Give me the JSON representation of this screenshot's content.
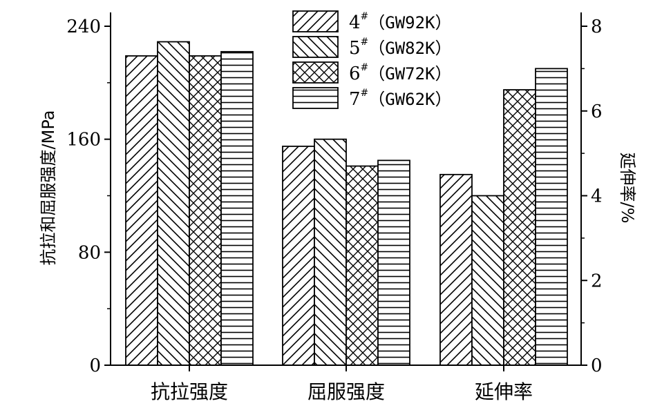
{
  "chart_data": {
    "type": "bar",
    "categories": [
      "抗拉强度",
      "屈服强度",
      "延伸率"
    ],
    "y_left": {
      "label": "抗拉和屈服强度/MPa",
      "range": [
        0,
        240
      ],
      "ticks": [
        0,
        80,
        160,
        240
      ],
      "applies_to": [
        "抗拉强度",
        "屈服强度"
      ]
    },
    "y_right": {
      "label": "延伸率/%",
      "range": [
        0,
        8
      ],
      "ticks": [
        0,
        2,
        4,
        6,
        8
      ],
      "applies_to": [
        "延伸率"
      ]
    },
    "series": [
      {
        "name_num": "4",
        "name_sup": "#",
        "name_paren": "（GW92K）",
        "pattern": "diag-forward",
        "values": [
          219,
          155,
          4.5
        ]
      },
      {
        "name_num": "5",
        "name_sup": "#",
        "name_paren": "（GW82K）",
        "pattern": "diag-back",
        "values": [
          229,
          160,
          4.0
        ]
      },
      {
        "name_num": "6",
        "name_sup": "#",
        "name_paren": "（GW72K）",
        "pattern": "crosshatch",
        "values": [
          219,
          141,
          6.5
        ]
      },
      {
        "name_num": "7",
        "name_sup": "#",
        "name_paren": "（GW62K）",
        "pattern": "horizontal",
        "values": [
          222,
          145,
          7.0
        ]
      }
    ],
    "legend_position": "top-center",
    "grid": false
  }
}
